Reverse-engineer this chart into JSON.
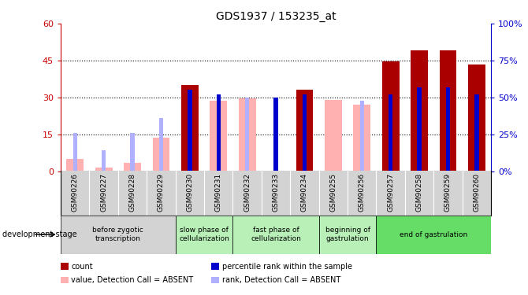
{
  "title": "GDS1937 / 153235_at",
  "samples": [
    "GSM90226",
    "GSM90227",
    "GSM90228",
    "GSM90229",
    "GSM90230",
    "GSM90231",
    "GSM90232",
    "GSM90233",
    "GSM90234",
    "GSM90255",
    "GSM90256",
    "GSM90257",
    "GSM90258",
    "GSM90259",
    "GSM90260"
  ],
  "count_values": [
    null,
    null,
    null,
    null,
    35,
    null,
    null,
    null,
    33,
    null,
    null,
    44.5,
    49,
    49,
    43.5
  ],
  "rank_values_pct": [
    null,
    null,
    null,
    null,
    55,
    52,
    null,
    50,
    52,
    null,
    null,
    52,
    57,
    57,
    52
  ],
  "absent_value": [
    5,
    1.5,
    3.5,
    13.5,
    null,
    28.5,
    29.5,
    null,
    null,
    29,
    27,
    null,
    null,
    null,
    null
  ],
  "absent_rank_pct": [
    26,
    14,
    26,
    36,
    null,
    null,
    50,
    null,
    null,
    null,
    48,
    null,
    null,
    null,
    null
  ],
  "ylim_left": [
    0,
    60
  ],
  "ylim_right": [
    0,
    100
  ],
  "yticks_left": [
    0,
    15,
    30,
    45,
    60
  ],
  "yticks_right": [
    0,
    25,
    50,
    75,
    100
  ],
  "ytick_labels_left": [
    "0",
    "15",
    "30",
    "45",
    "60"
  ],
  "ytick_labels_right": [
    "0%",
    "25%",
    "50%",
    "75%",
    "100%"
  ],
  "stage_groups": [
    {
      "label": "before zygotic\ntranscription",
      "samples": [
        "GSM90226",
        "GSM90227",
        "GSM90228",
        "GSM90229"
      ],
      "color": "#d3d3d3"
    },
    {
      "label": "slow phase of\ncellularization",
      "samples": [
        "GSM90230",
        "GSM90231"
      ],
      "color": "#b8f0b8"
    },
    {
      "label": "fast phase of\ncellularization",
      "samples": [
        "GSM90232",
        "GSM90233",
        "GSM90234"
      ],
      "color": "#b8f0b8"
    },
    {
      "label": "beginning of\ngastrulation",
      "samples": [
        "GSM90255",
        "GSM90256"
      ],
      "color": "#b8f0b8"
    },
    {
      "label": "end of gastrulation",
      "samples": [
        "GSM90257",
        "GSM90258",
        "GSM90259",
        "GSM90260"
      ],
      "color": "#66dd66"
    }
  ],
  "bar_width": 0.6,
  "small_bar_width": 0.15,
  "color_count": "#aa0000",
  "color_rank": "#0000cc",
  "color_absent_value": "#ffb0b0",
  "color_absent_rank": "#b0b0ff",
  "legend_items": [
    {
      "color": "#aa0000",
      "label": "count",
      "marker": "s"
    },
    {
      "color": "#0000cc",
      "label": "percentile rank within the sample",
      "marker": "s"
    },
    {
      "color": "#ffb0b0",
      "label": "value, Detection Call = ABSENT",
      "marker": "s"
    },
    {
      "color": "#b0b0ff",
      "label": "rank, Detection Call = ABSENT",
      "marker": "s"
    }
  ]
}
